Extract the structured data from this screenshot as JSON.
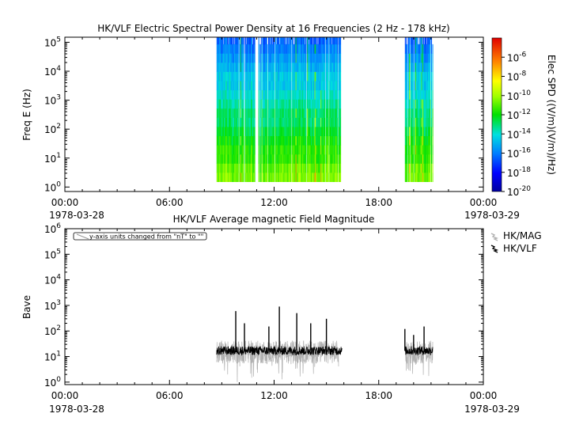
{
  "chart_data": [
    {
      "type": "heatmap",
      "title": "HK/VLF  Electric Spectral Power Density at 16 Frequencies (2 Hz - 178 kHz)",
      "ylabel": "Freq E (Hz)",
      "yscale": "log",
      "ylim": [
        0.7,
        150000
      ],
      "y_ticks": [
        {
          "base": "10",
          "exp": "0"
        },
        {
          "base": "10",
          "exp": "1"
        },
        {
          "base": "10",
          "exp": "2"
        },
        {
          "base": "10",
          "exp": "3"
        },
        {
          "base": "10",
          "exp": "4"
        },
        {
          "base": "10",
          "exp": "5"
        }
      ],
      "x_ticks": [
        "00:00",
        "06:00",
        "12:00",
        "18:00",
        "00:00"
      ],
      "x_start_date": "1978-03-28",
      "x_end_date": "1978-03-29",
      "xlim_hours": [
        0,
        24
      ],
      "frequency_range_hz": [
        2,
        178000
      ],
      "data_intervals_hours": [
        [
          8.7,
          10.9
        ],
        [
          11.1,
          15.8
        ],
        [
          19.5,
          21.1
        ]
      ],
      "colorbar": {
        "label": "Elec SPD ((V/m)(V/m)/Hz)",
        "scale": "log",
        "range": [
          1e-20,
          0.0001
        ],
        "ticks": [
          {
            "base": "10",
            "exp": "-6"
          },
          {
            "base": "10",
            "exp": "-8"
          },
          {
            "base": "10",
            "exp": "-10"
          },
          {
            "base": "10",
            "exp": "-12"
          },
          {
            "base": "10",
            "exp": "-14"
          },
          {
            "base": "10",
            "exp": "-16"
          },
          {
            "base": "10",
            "exp": "-18"
          },
          {
            "base": "10",
            "exp": "-20"
          }
        ]
      },
      "spectrum_log10_by_freq_low_to_high": [
        -10.5,
        -10.8,
        -11.5,
        -11.5,
        -12,
        -12.5,
        -13,
        -13,
        -13.5,
        -14,
        -14.5,
        -14.5,
        -15,
        -15.5,
        -16,
        -16.5
      ]
    },
    {
      "type": "line",
      "title": "HK/VLF  Average magnetic Field Magnitude",
      "ylabel": "Bave",
      "yscale": "log",
      "ylim": [
        0.8,
        1000000
      ],
      "y_ticks": [
        {
          "base": "10",
          "exp": "0"
        },
        {
          "base": "10",
          "exp": "1"
        },
        {
          "base": "10",
          "exp": "2"
        },
        {
          "base": "10",
          "exp": "3"
        },
        {
          "base": "10",
          "exp": "4"
        },
        {
          "base": "10",
          "exp": "5"
        },
        {
          "base": "10",
          "exp": "6"
        }
      ],
      "x_ticks": [
        "00:00",
        "06:00",
        "12:00",
        "18:00",
        "00:00"
      ],
      "x_start_date": "1978-03-28",
      "x_end_date": "1978-03-29",
      "xlim_hours": [
        0,
        24
      ],
      "annotation": "y-axis units changed from \"nT\" to \"\"",
      "series": [
        {
          "name": "HK/MAG",
          "color": "#b0b0b0",
          "typical_value": 15,
          "intervals_hours": [
            [
              8.7,
              15.7
            ],
            [
              19.5,
              21.1
            ]
          ]
        },
        {
          "name": "HK/VLF",
          "color": "#000000",
          "typical_value": 17,
          "intervals_hours": [
            [
              8.7,
              15.9
            ],
            [
              19.5,
              21.1
            ]
          ]
        }
      ],
      "spikes": [
        {
          "x": 9.8,
          "y": 600
        },
        {
          "x": 10.3,
          "y": 200
        },
        {
          "x": 11.7,
          "y": 150
        },
        {
          "x": 12.3,
          "y": 900
        },
        {
          "x": 13.3,
          "y": 500
        },
        {
          "x": 14.1,
          "y": 200
        },
        {
          "x": 15.0,
          "y": 300
        },
        {
          "x": 19.5,
          "y": 120
        },
        {
          "x": 20.0,
          "y": 70
        },
        {
          "x": 20.6,
          "y": 150
        }
      ]
    }
  ]
}
